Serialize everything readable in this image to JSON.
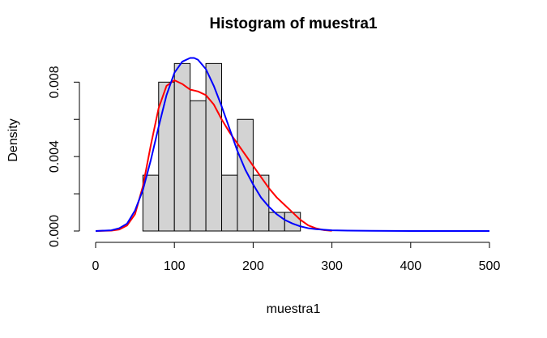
{
  "chart_data": {
    "type": "bar",
    "title": "Histogram of muestra1",
    "xlabel": "muestra1",
    "ylabel": "Density",
    "xlim": [
      0,
      500
    ],
    "ylim": [
      0,
      0.0098
    ],
    "x_ticks": [
      0,
      100,
      200,
      300,
      400,
      500
    ],
    "x_tick_labels": [
      "0",
      "100",
      "200",
      "300",
      "400",
      "500"
    ],
    "y_ticks": [
      0,
      0.002,
      0.004,
      0.006,
      0.008
    ],
    "y_tick_labels": [
      "0.000",
      "",
      "0.004",
      "",
      "0.008"
    ],
    "bin_edges": [
      60,
      80,
      100,
      120,
      140,
      160,
      180,
      200,
      220,
      240,
      260
    ],
    "values": [
      0.003,
      0.008,
      0.009,
      0.007,
      0.009,
      0.003,
      0.006,
      0.003,
      0.001,
      0.001
    ],
    "bar_color": "#d3d3d3",
    "series": [
      {
        "color": "#ff0000",
        "x": [
          0,
          20,
          30,
          40,
          50,
          60,
          70,
          80,
          90,
          100,
          110,
          120,
          130,
          140,
          150,
          160,
          170,
          180,
          190,
          200,
          210,
          220,
          230,
          240,
          250,
          260,
          270,
          280,
          290,
          300
        ],
        "y": [
          0,
          2e-05,
          8e-05,
          0.0003,
          0.0009,
          0.0024,
          0.0046,
          0.0066,
          0.0078,
          0.0081,
          0.0079,
          0.0076,
          0.0075,
          0.0073,
          0.0068,
          0.006,
          0.0053,
          0.0047,
          0.0041,
          0.0035,
          0.0029,
          0.0023,
          0.0018,
          0.0014,
          0.001,
          0.0006,
          0.0003,
          0.00014,
          5e-05,
          1e-05
        ]
      },
      {
        "color": "#0000ff",
        "x": [
          0,
          20,
          30,
          40,
          50,
          60,
          70,
          80,
          90,
          100,
          110,
          120,
          125,
          130,
          140,
          150,
          160,
          170,
          180,
          190,
          200,
          210,
          220,
          230,
          240,
          250,
          260,
          270,
          280,
          300,
          320,
          350,
          400,
          500
        ],
        "y": [
          0,
          4e-05,
          0.00015,
          0.0004,
          0.0011,
          0.0022,
          0.0038,
          0.0056,
          0.0073,
          0.0085,
          0.0091,
          0.0093,
          0.0093,
          0.0092,
          0.0087,
          0.0078,
          0.0067,
          0.0055,
          0.0043,
          0.0033,
          0.0025,
          0.0018,
          0.0013,
          0.0009,
          0.0006,
          0.0004,
          0.00025,
          0.00015,
          0.0001,
          4e-05,
          2e-05,
          1e-05,
          0,
          0
        ]
      }
    ]
  }
}
